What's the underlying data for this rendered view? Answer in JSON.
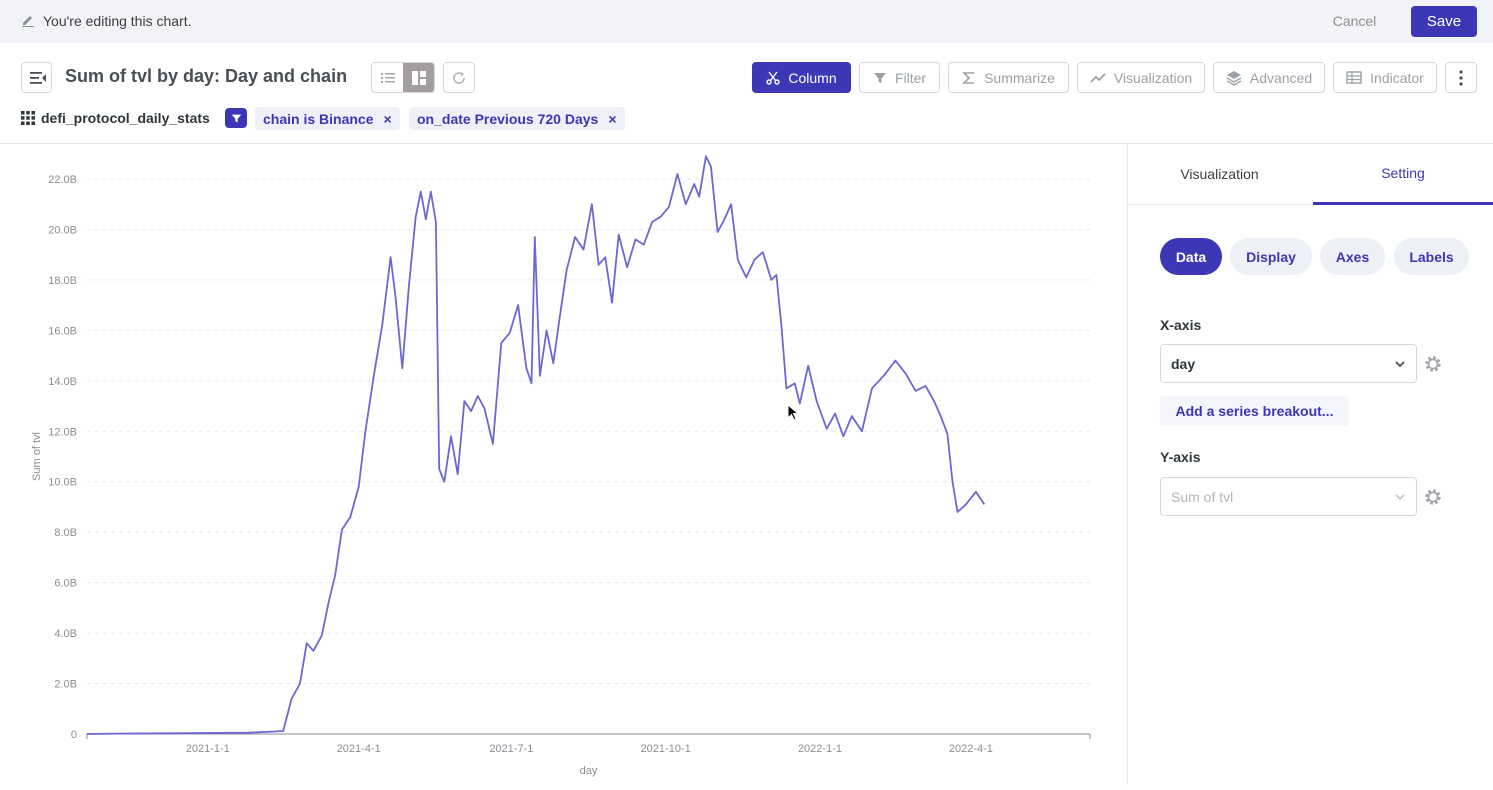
{
  "editbar": {
    "message": "You're editing this chart.",
    "cancel": "Cancel",
    "save": "Save"
  },
  "header": {
    "title": "Sum of tvl by day: Day and chain",
    "tools": [
      {
        "label": "Column",
        "icon": "scissors-icon",
        "active": true
      },
      {
        "label": "Filter",
        "icon": "filter-icon",
        "active": false
      },
      {
        "label": "Summarize",
        "icon": "sigma-icon",
        "active": false
      },
      {
        "label": "Visualization",
        "icon": "line-chart-icon",
        "active": false
      },
      {
        "label": "Advanced",
        "icon": "layers-icon",
        "active": false
      },
      {
        "label": "Indicator",
        "icon": "table-icon",
        "active": false
      }
    ]
  },
  "source": {
    "table": "defi_protocol_daily_stats"
  },
  "filters": [
    {
      "label": "chain is Binance",
      "remove": "×"
    },
    {
      "label": "on_date Previous 720 Days",
      "remove": "×"
    }
  ],
  "panel": {
    "tabs": [
      {
        "label": "Visualization",
        "active": false
      },
      {
        "label": "Setting",
        "active": true
      }
    ],
    "subtabs": [
      {
        "label": "Data",
        "active": true
      },
      {
        "label": "Display"
      },
      {
        "label": "Axes"
      },
      {
        "label": "Labels"
      }
    ],
    "xaxis_label": "X-axis",
    "xaxis_value": "day",
    "breakout": "Add a series breakout...",
    "yaxis_label": "Y-axis",
    "yaxis_value": "Sum of tvl"
  },
  "colors": {
    "accent": "#3c37b5",
    "line": "#6c67d3"
  },
  "chart_data": {
    "type": "line",
    "xlabel": "day",
    "ylabel": "Sum of tvl",
    "ylim": [
      0,
      22000000000
    ],
    "yticks": [
      "0",
      "2.0B",
      "4.0B",
      "6.0B",
      "8.0B",
      "10.0B",
      "12.0B",
      "14.0B",
      "16.0B",
      "18.0B",
      "20.0B",
      "22.0B"
    ],
    "xticks": [
      "2021-1-1",
      "2021-4-1",
      "2021-7-1",
      "2021-10-1",
      "2022-1-1",
      "2022-4-1"
    ],
    "x_start": "2020-10-21",
    "x_end": "2022-06-11",
    "grid": true,
    "series": [
      {
        "points": [
          [
            "2020-10-21",
            0.0
          ],
          [
            "2020-11-15",
            0.02
          ],
          [
            "2020-12-20",
            0.03
          ],
          [
            "2021-01-25",
            0.05
          ],
          [
            "2021-02-10",
            0.1
          ],
          [
            "2021-02-15",
            0.12
          ],
          [
            "2021-02-20",
            1.4
          ],
          [
            "2021-02-25",
            2.0
          ],
          [
            "2021-03-01",
            3.6
          ],
          [
            "2021-03-05",
            3.3
          ],
          [
            "2021-03-10",
            3.9
          ],
          [
            "2021-03-14",
            5.2
          ],
          [
            "2021-03-18",
            6.3
          ],
          [
            "2021-03-22",
            8.1
          ],
          [
            "2021-03-27",
            8.6
          ],
          [
            "2021-04-01",
            9.8
          ],
          [
            "2021-04-05",
            12.0
          ],
          [
            "2021-04-10",
            14.2
          ],
          [
            "2021-04-15",
            16.2
          ],
          [
            "2021-04-20",
            18.9
          ],
          [
            "2021-04-23",
            17.3
          ],
          [
            "2021-04-27",
            14.5
          ],
          [
            "2021-05-01",
            17.8
          ],
          [
            "2021-05-05",
            20.5
          ],
          [
            "2021-05-08",
            21.5
          ],
          [
            "2021-05-11",
            20.4
          ],
          [
            "2021-05-14",
            21.5
          ],
          [
            "2021-05-17",
            20.3
          ],
          [
            "2021-05-19",
            10.5
          ],
          [
            "2021-05-22",
            10.0
          ],
          [
            "2021-05-26",
            11.8
          ],
          [
            "2021-05-30",
            10.3
          ],
          [
            "2021-06-03",
            13.2
          ],
          [
            "2021-06-07",
            12.8
          ],
          [
            "2021-06-11",
            13.4
          ],
          [
            "2021-06-15",
            12.9
          ],
          [
            "2021-06-20",
            11.5
          ],
          [
            "2021-06-25",
            15.5
          ],
          [
            "2021-06-30",
            15.9
          ],
          [
            "2021-07-05",
            17.0
          ],
          [
            "2021-07-10",
            14.5
          ],
          [
            "2021-07-13",
            13.9
          ],
          [
            "2021-07-15",
            19.7
          ],
          [
            "2021-07-18",
            14.2
          ],
          [
            "2021-07-22",
            16.0
          ],
          [
            "2021-07-26",
            14.7
          ],
          [
            "2021-07-30",
            16.6
          ],
          [
            "2021-08-03",
            18.4
          ],
          [
            "2021-08-08",
            19.7
          ],
          [
            "2021-08-13",
            19.2
          ],
          [
            "2021-08-18",
            21.0
          ],
          [
            "2021-08-22",
            18.6
          ],
          [
            "2021-08-26",
            18.9
          ],
          [
            "2021-08-30",
            17.1
          ],
          [
            "2021-09-03",
            19.8
          ],
          [
            "2021-09-08",
            18.5
          ],
          [
            "2021-09-13",
            19.6
          ],
          [
            "2021-09-18",
            19.4
          ],
          [
            "2021-09-23",
            20.3
          ],
          [
            "2021-09-28",
            20.5
          ],
          [
            "2021-10-03",
            20.9
          ],
          [
            "2021-10-08",
            22.2
          ],
          [
            "2021-10-13",
            21.0
          ],
          [
            "2021-10-18",
            21.8
          ],
          [
            "2021-10-21",
            21.3
          ],
          [
            "2021-10-25",
            22.9
          ],
          [
            "2021-10-28",
            22.5
          ],
          [
            "2021-11-01",
            19.9
          ],
          [
            "2021-11-05",
            20.4
          ],
          [
            "2021-11-09",
            21.0
          ],
          [
            "2021-11-13",
            18.8
          ],
          [
            "2021-11-18",
            18.1
          ],
          [
            "2021-11-23",
            18.8
          ],
          [
            "2021-11-28",
            19.1
          ],
          [
            "2021-12-03",
            18.0
          ],
          [
            "2021-12-06",
            18.2
          ],
          [
            "2021-12-09",
            16.2
          ],
          [
            "2021-12-12",
            13.7
          ],
          [
            "2021-12-17",
            13.9
          ],
          [
            "2021-12-20",
            13.1
          ],
          [
            "2021-12-25",
            14.6
          ],
          [
            "2021-12-30",
            13.2
          ],
          [
            "2022-01-05",
            12.1
          ],
          [
            "2022-01-10",
            12.7
          ],
          [
            "2022-01-15",
            11.8
          ],
          [
            "2022-01-20",
            12.6
          ],
          [
            "2022-01-26",
            12.0
          ],
          [
            "2022-02-01",
            13.7
          ],
          [
            "2022-02-08",
            14.2
          ],
          [
            "2022-02-15",
            14.8
          ],
          [
            "2022-02-21",
            14.3
          ],
          [
            "2022-02-27",
            13.6
          ],
          [
            "2022-03-05",
            13.8
          ],
          [
            "2022-03-10",
            13.2
          ],
          [
            "2022-03-14",
            12.6
          ],
          [
            "2022-03-18",
            11.9
          ],
          [
            "2022-03-21",
            10.0
          ],
          [
            "2022-03-24",
            8.8
          ],
          [
            "2022-03-29",
            9.1
          ],
          [
            "2022-04-04",
            9.6
          ],
          [
            "2022-04-09",
            9.1
          ]
        ]
      }
    ]
  }
}
